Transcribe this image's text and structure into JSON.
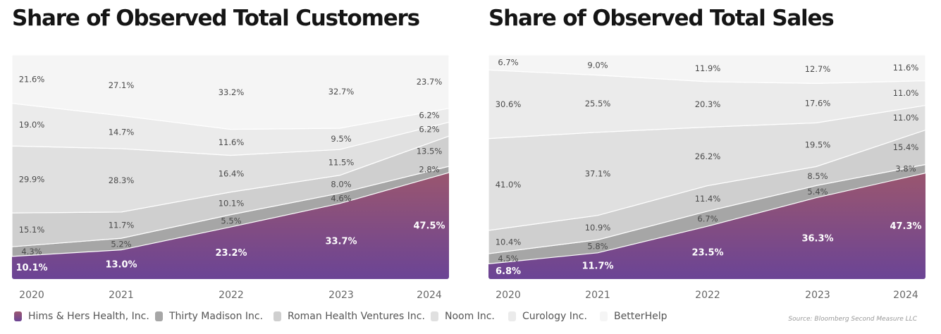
{
  "colors": {
    "hims_top": "#9a566f",
    "hims_bottom": "#6b4495",
    "thirty_madison": "#a6a6a6",
    "roman": "#cfcfcf",
    "noom": "#e0e0e0",
    "curology": "#ebebeb",
    "betterhelp": "#f5f5f5"
  },
  "legend": [
    {
      "name": "Hims & Hers Health, Inc.",
      "color": "#7a4a86"
    },
    {
      "name": "Thirty Madison Inc.",
      "color": "#a6a6a6"
    },
    {
      "name": "Roman Health Ventures Inc.",
      "color": "#cfcfcf"
    },
    {
      "name": "Noom Inc.",
      "color": "#e0e0e0"
    },
    {
      "name": "Curology Inc.",
      "color": "#ebebeb"
    },
    {
      "name": "BetterHelp",
      "color": "#f5f5f5"
    }
  ],
  "source": "Source: Bloomberg Second Measure LLC",
  "chart_data": [
    {
      "type": "area",
      "stacked": true,
      "title": "Share of Observed Total Customers",
      "x": [
        "2020",
        "2021",
        "2022",
        "2023",
        "2024"
      ],
      "series": [
        {
          "name": "Hims & Hers Health, Inc.",
          "values": [
            10.1,
            13.0,
            23.2,
            33.7,
            47.5
          ],
          "labels": [
            "10.1%",
            "13.0%",
            "23.2%",
            "33.7%",
            "47.5%"
          ]
        },
        {
          "name": "Thirty Madison Inc.",
          "values": [
            4.3,
            5.2,
            5.5,
            4.6,
            2.8
          ],
          "labels": [
            "4.3%",
            "5.2%",
            "5.5%",
            "4.6%",
            "2.8%"
          ]
        },
        {
          "name": "Roman Health Ventures Inc.",
          "values": [
            15.1,
            11.7,
            10.1,
            8.0,
            13.5
          ],
          "labels": [
            "15.1%",
            "11.7%",
            "10.1%",
            "8.0%",
            "13.5%"
          ]
        },
        {
          "name": "Noom Inc.",
          "values": [
            29.9,
            28.3,
            16.4,
            11.5,
            6.2
          ],
          "labels": [
            "29.9%",
            "28.3%",
            "16.4%",
            "11.5%",
            "6.2%"
          ]
        },
        {
          "name": "Curology Inc.",
          "values": [
            19.0,
            14.7,
            11.6,
            9.5,
            6.2
          ],
          "labels": [
            "19.0%",
            "14.7%",
            "11.6%",
            "9.5%",
            "6.2%"
          ]
        },
        {
          "name": "BetterHelp",
          "values": [
            21.6,
            27.1,
            33.2,
            32.7,
            23.7
          ],
          "labels": [
            "21.6%",
            "27.1%",
            "33.2%",
            "32.7%",
            "23.7%"
          ]
        }
      ],
      "ylim": [
        0,
        100
      ]
    },
    {
      "type": "area",
      "stacked": true,
      "title": "Share of Observed Total Sales",
      "x": [
        "2020",
        "2021",
        "2022",
        "2023",
        "2024"
      ],
      "series": [
        {
          "name": "Hims & Hers Health, Inc.",
          "values": [
            6.8,
            11.7,
            23.5,
            36.3,
            47.3
          ],
          "labels": [
            "6.8%",
            "11.7%",
            "23.5%",
            "36.3%",
            "47.3%"
          ]
        },
        {
          "name": "Thirty Madison Inc.",
          "values": [
            4.5,
            5.8,
            6.7,
            5.4,
            3.8
          ],
          "labels": [
            "4.5%",
            "5.8%",
            "6.7%",
            "5.4%",
            "3.8%"
          ]
        },
        {
          "name": "Roman Health Ventures Inc.",
          "values": [
            10.4,
            10.9,
            11.4,
            8.5,
            15.4
          ],
          "labels": [
            "10.4%",
            "10.9%",
            "11.4%",
            "8.5%",
            "15.4%"
          ]
        },
        {
          "name": "Noom Inc.",
          "values": [
            41.0,
            37.1,
            26.2,
            19.5,
            11.0
          ],
          "labels": [
            "41.0%",
            "37.1%",
            "26.2%",
            "19.5%",
            "11.0%"
          ]
        },
        {
          "name": "Curology Inc.",
          "values": [
            30.6,
            25.5,
            20.3,
            17.6,
            11.0
          ],
          "labels": [
            "30.6%",
            "25.5%",
            "20.3%",
            "17.6%",
            "11.0%"
          ]
        },
        {
          "name": "BetterHelp",
          "values": [
            6.7,
            9.0,
            11.9,
            12.7,
            11.6
          ],
          "labels": [
            "6.7%",
            "9.0%",
            "11.9%",
            "12.7%",
            "11.6%"
          ]
        }
      ],
      "ylim": [
        0,
        100
      ]
    }
  ]
}
